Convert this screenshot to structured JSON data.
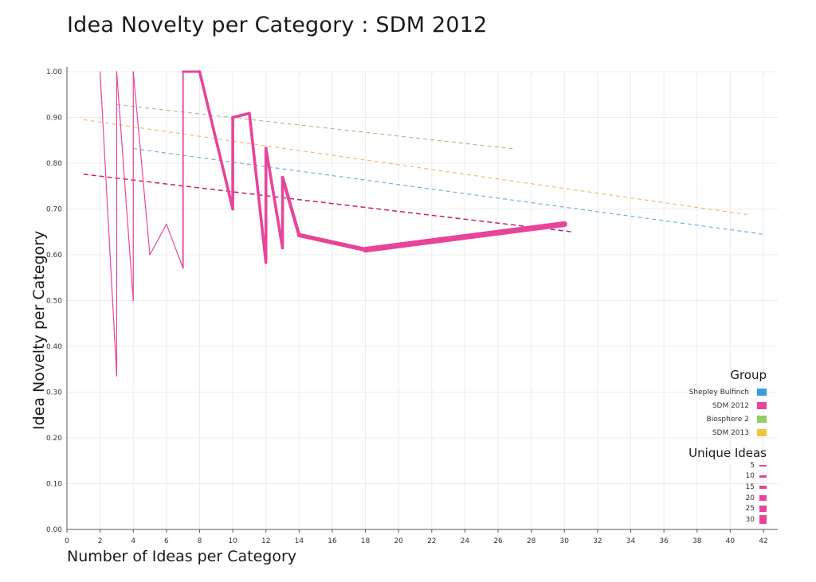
{
  "chart_data": {
    "type": "line",
    "title": "Idea Novelty per Category : SDM 2012",
    "xlabel": "Number of Ideas per Category",
    "ylabel": "Idea Novelty per Category",
    "xlim": [
      0,
      42
    ],
    "ylim": [
      0,
      1.0
    ],
    "x_ticks": [
      "0",
      "2",
      "4",
      "6",
      "8",
      "10",
      "12",
      "14",
      "16",
      "18",
      "20",
      "22",
      "24",
      "26",
      "28",
      "30",
      "32",
      "34",
      "36",
      "38",
      "40",
      "42"
    ],
    "y_ticks": [
      "0.00",
      "0.10",
      "0.20",
      "0.30",
      "0.40",
      "0.50",
      "0.60",
      "0.70",
      "0.80",
      "0.90",
      "1.00"
    ],
    "grid": true,
    "series": [
      {
        "name": "SDM 2012",
        "color": "#e8449a",
        "points": [
          {
            "x": 2,
            "y": 1.0,
            "w": 1
          },
          {
            "x": 3,
            "y": 0.335,
            "w": 1
          },
          {
            "x": 3,
            "y": 1.0,
            "w": 1
          },
          {
            "x": 4,
            "y": 0.5,
            "w": 1
          },
          {
            "x": 4,
            "y": 1.0,
            "w": 1
          },
          {
            "x": 5,
            "y": 0.6,
            "w": 1
          },
          {
            "x": 6,
            "y": 0.667,
            "w": 1
          },
          {
            "x": 7,
            "y": 0.571,
            "w": 1
          },
          {
            "x": 7,
            "y": 1.0,
            "w": 2
          },
          {
            "x": 8,
            "y": 1.0,
            "w": 3
          },
          {
            "x": 10,
            "y": 0.7,
            "w": 3
          },
          {
            "x": 10,
            "y": 0.9,
            "w": 3
          },
          {
            "x": 11,
            "y": 0.909,
            "w": 3
          },
          {
            "x": 12,
            "y": 0.583,
            "w": 3
          },
          {
            "x": 12,
            "y": 0.833,
            "w": 3
          },
          {
            "x": 13,
            "y": 0.615,
            "w": 3
          },
          {
            "x": 13,
            "y": 0.769,
            "w": 3
          },
          {
            "x": 14,
            "y": 0.643,
            "w": 4
          },
          {
            "x": 18,
            "y": 0.611,
            "w": 5
          },
          {
            "x": 30,
            "y": 0.667,
            "w": 7
          }
        ]
      }
    ],
    "trend_lines": [
      {
        "name": "Biosphere 2",
        "color": "#9bbf7f",
        "x1": 3,
        "y1": 0.928,
        "x2": 27,
        "y2": 0.831
      },
      {
        "name": "SDM 2013",
        "color": "#f2b46a",
        "x1": 1,
        "y1": 0.895,
        "x2": 41,
        "y2": 0.688
      },
      {
        "name": "Shepley Bulfinch",
        "color": "#6aa5d4",
        "x1": 4,
        "y1": 0.832,
        "x2": 42,
        "y2": 0.645
      },
      {
        "name": "SDM 2012",
        "color": "#c81e6e",
        "x1": 1,
        "y1": 0.776,
        "x2": 30.5,
        "y2": 0.65
      }
    ],
    "legend": {
      "title": "Group",
      "position": "bottom-right",
      "items": [
        {
          "label": "Shepley Bulfinch",
          "color": "#3a9be0"
        },
        {
          "label": "SDM 2012",
          "color": "#e8449a"
        },
        {
          "label": "Biosphere 2",
          "color": "#8fcf6a"
        },
        {
          "label": "SDM 2013",
          "color": "#f7c33a"
        }
      ]
    },
    "size_legend": {
      "title": "Unique Ideas",
      "items": [
        {
          "label": "5",
          "w": 1
        },
        {
          "label": "10",
          "w": 2
        },
        {
          "label": "15",
          "w": 3
        },
        {
          "label": "20",
          "w": 4
        },
        {
          "label": "25",
          "w": 5
        },
        {
          "label": "30",
          "w": 7
        }
      ]
    }
  }
}
